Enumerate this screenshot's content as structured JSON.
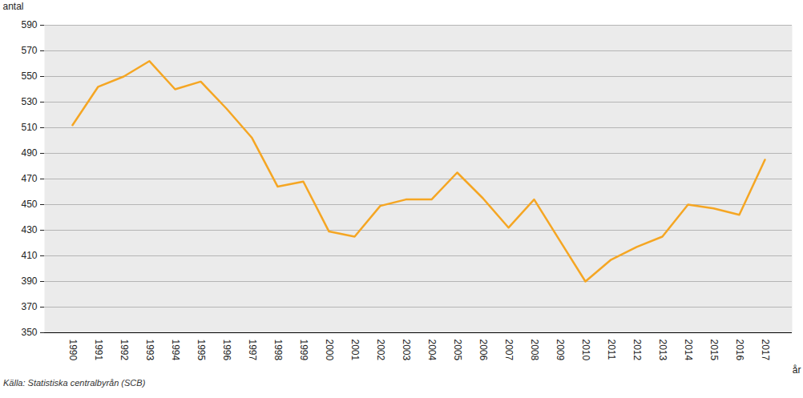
{
  "chart_data": {
    "type": "line",
    "caption": "Källa: Statistiska centralbyrån (SCB)",
    "y_label": "antal",
    "x_label": "år",
    "categories": [
      "1990",
      "1991",
      "1992",
      "1993",
      "1994",
      "1995",
      "1996",
      "1997",
      "1998",
      "1999",
      "2000",
      "2001",
      "2002",
      "2003",
      "2004",
      "2005",
      "2006",
      "2007",
      "2008",
      "2009",
      "2010",
      "2011",
      "2012",
      "2013",
      "2014",
      "2015",
      "2016",
      "2017"
    ],
    "values": [
      512,
      542,
      550,
      562,
      540,
      546,
      525,
      502,
      464,
      468,
      429,
      425,
      449,
      454,
      454,
      475,
      455,
      432,
      454,
      422,
      390,
      407,
      417,
      425,
      450,
      447,
      442,
      485
    ],
    "color": "#f5a623",
    "ylim": [
      350,
      590
    ],
    "yticks": [
      350,
      370,
      390,
      410,
      430,
      450,
      470,
      490,
      510,
      530,
      550,
      570,
      590
    ],
    "grid": true
  }
}
